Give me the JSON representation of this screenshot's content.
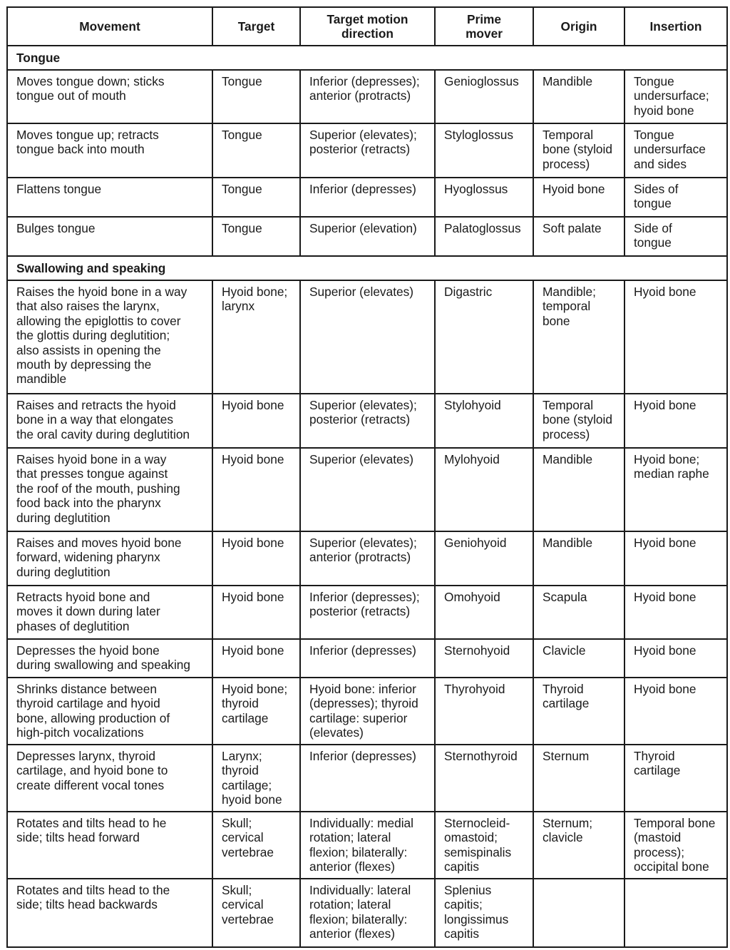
{
  "headers": [
    "Movement",
    "Target",
    "Target motion\ndirection",
    "Prime\nmover",
    "Origin",
    "Insertion"
  ],
  "sections": [
    {
      "title": "Tongue",
      "rows": [
        [
          "Moves tongue down; sticks\ntongue out of mouth",
          "Tongue",
          "Inferior (depresses);\nanterior (protracts)",
          "Genioglossus",
          "Mandible",
          "Tongue\nundersurface;\nhyoid bone"
        ],
        [
          "Moves tongue up; retracts\ntongue back into mouth",
          "Tongue",
          "Superior (elevates);\nposterior (retracts)",
          "Styloglossus",
          "Temporal\nbone (styloid\nprocess)",
          "Tongue\nundersurface\nand sides"
        ],
        [
          "Flattens tongue",
          "Tongue",
          "Inferior (depresses)",
          "Hyoglossus",
          "Hyoid bone",
          "Sides of\ntongue"
        ],
        [
          "Bulges tongue",
          "Tongue",
          "Superior (elevation)",
          "Palatoglossus",
          "Soft palate",
          "Side of\ntongue"
        ]
      ]
    },
    {
      "title": "Swallowing and speaking",
      "rows": [
        [
          "Raises the hyoid bone in a way\nthat also raises the larynx,\nallowing the epiglottis to cover\nthe glottis during deglutition;\nalso assists in opening the\nmouth by depressing the\nmandible",
          "Hyoid bone;\nlarynx",
          "Superior (elevates)",
          "Digastric",
          "Mandible;\ntemporal\nbone",
          "Hyoid bone"
        ],
        [
          "Raises and retracts the hyoid\nbone in a way that elongates\nthe oral cavity during deglutition",
          "Hyoid bone",
          "Superior (elevates);\nposterior (retracts)",
          "Stylohyoid",
          "Temporal\nbone (styloid\nprocess)",
          "Hyoid bone"
        ],
        [
          "Raises hyoid bone in a way\nthat presses tongue against\nthe roof of the mouth, pushing\nfood back into the pharynx\nduring deglutition",
          "Hyoid bone",
          "Superior (elevates)",
          "Mylohyoid",
          "Mandible",
          "Hyoid bone;\nmedian raphe"
        ],
        [
          "Raises and moves hyoid bone\nforward, widening pharynx\nduring deglutition",
          "Hyoid bone",
          "Superior (elevates);\nanterior (protracts)",
          "Geniohyoid",
          "Mandible",
          "Hyoid bone"
        ],
        [
          "Retracts hyoid bone and\nmoves it down during later\nphases of deglutition",
          "Hyoid bone",
          "Inferior (depresses);\nposterior (retracts)",
          "Omohyoid",
          "Scapula",
          "Hyoid bone"
        ],
        [
          "Depresses the hyoid bone\nduring swallowing and speaking",
          "Hyoid bone",
          "Inferior (depresses)",
          "Sternohyoid",
          "Clavicle",
          "Hyoid bone"
        ],
        [
          "Shrinks distance between\nthyroid cartilage and hyoid\nbone, allowing production of\nhigh-pitch vocalizations",
          "Hyoid bone;\nthyroid\ncartilage",
          "Hyoid bone: inferior\n(depresses); thyroid\ncartilage: superior\n(elevates)",
          "Thyrohyoid",
          "Thyroid\ncartilage",
          "Hyoid bone"
        ],
        [
          "Depresses larynx, thyroid\ncartilage, and hyoid bone to\ncreate different vocal tones",
          "Larynx;\nthyroid\ncartilage;\nhyoid bone",
          "Inferior (depresses)",
          "Sternothyroid",
          "Sternum",
          "Thyroid\ncartilage"
        ],
        [
          "Rotates and tilts head to he\nside; tilts head forward",
          "Skull;\ncervical\nvertebrae",
          "Individually: medial\nrotation; lateral\nflexion; bilaterally:\nanterior (flexes)",
          "Sternocleid-\nomastoid;\nsemispinalis\ncapitis",
          "Sternum;\nclavicle",
          "Temporal bone\n(mastoid\nprocess);\noccipital bone"
        ],
        [
          "Rotates and tilts head to the\nside; tilts head backwards",
          "Skull;\ncervical\nvertebrae",
          "Individually: lateral\nrotation; lateral\nflexion; bilaterally:\nanterior (flexes)",
          "Splenius\ncapitis;\nlongissimus\ncapitis",
          "",
          ""
        ]
      ]
    }
  ]
}
